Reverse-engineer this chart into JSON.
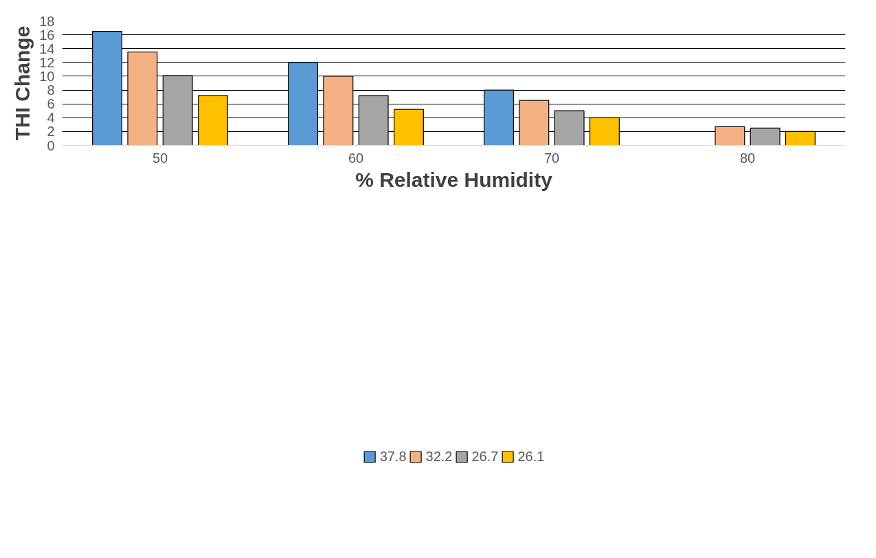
{
  "chart_data": {
    "type": "bar",
    "xlabel": "% Relative Humidity",
    "ylabel": "THI Change",
    "categories": [
      "50",
      "60",
      "70",
      "80"
    ],
    "series": [
      {
        "name": "37.8",
        "color": "#5b9bd5",
        "values": [
          16.5,
          12.0,
          8.0,
          null
        ]
      },
      {
        "name": "32.2",
        "color": "#f4b183",
        "values": [
          13.5,
          10.0,
          6.5,
          2.7
        ]
      },
      {
        "name": "26.7",
        "color": "#a5a5a5",
        "values": [
          10.1,
          7.2,
          5.0,
          2.5
        ]
      },
      {
        "name": "26.1",
        "color": "#ffc000",
        "values": [
          7.2,
          5.2,
          4.0,
          2.0
        ]
      }
    ],
    "ylim": [
      0,
      18
    ],
    "yticks": [
      0,
      2,
      4,
      6,
      8,
      10,
      12,
      14,
      16,
      18
    ],
    "grid": "y",
    "legend": "bottom"
  }
}
